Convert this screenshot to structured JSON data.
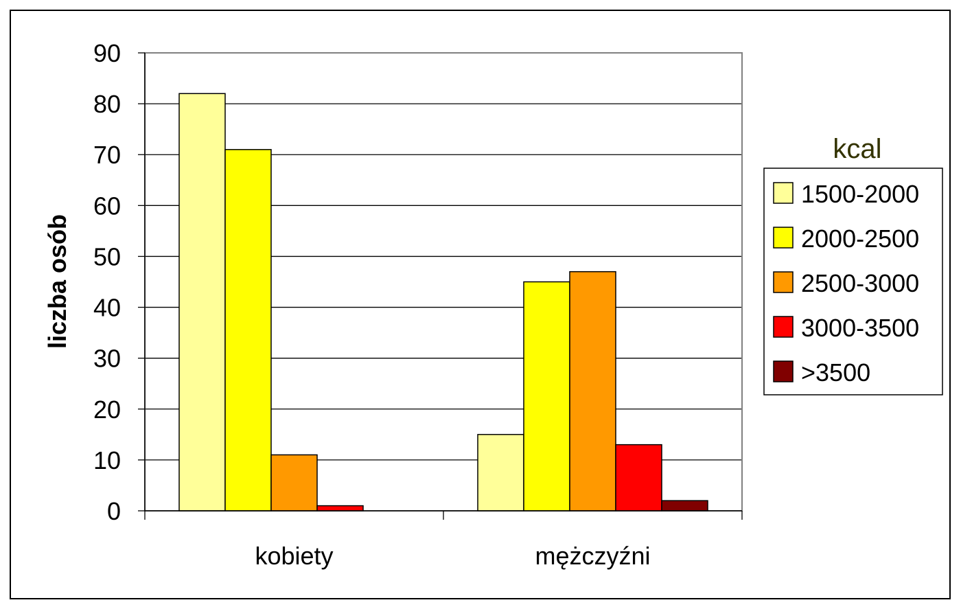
{
  "chart_data": {
    "type": "bar",
    "categories": [
      "kobiety",
      "mężczyźni"
    ],
    "series": [
      {
        "name": "1500-2000",
        "values": [
          82,
          15
        ],
        "color": "#FFFF99"
      },
      {
        "name": "2000-2500",
        "values": [
          71,
          45
        ],
        "color": "#FFFF00"
      },
      {
        "name": "2500-3000",
        "values": [
          11,
          47
        ],
        "color": "#FF9900"
      },
      {
        "name": "3000-3500",
        "values": [
          1,
          13
        ],
        "color": "#FF0000"
      },
      {
        "name": ">3500",
        "values": [
          0,
          2
        ],
        "color": "#800000"
      }
    ],
    "ylabel": "liczba osób",
    "xlabel": "",
    "ylim": [
      0,
      90
    ],
    "yticks": [
      "0",
      "10",
      "20",
      "30",
      "40",
      "50",
      "60",
      "70",
      "80",
      "90"
    ],
    "legend_title": "kcal",
    "legend_title_color": "#333300",
    "legend_position": "right",
    "grid": true
  }
}
